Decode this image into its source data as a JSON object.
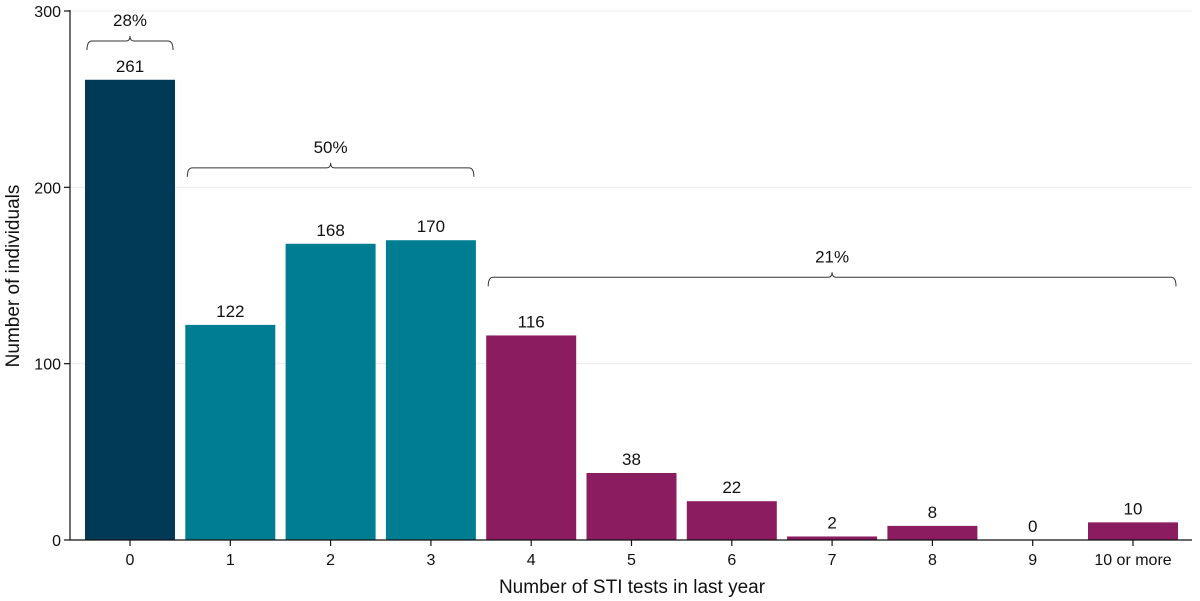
{
  "chart_data": {
    "type": "bar",
    "categories": [
      "0",
      "1",
      "2",
      "3",
      "4",
      "5",
      "6",
      "7",
      "8",
      "9",
      "10 or more"
    ],
    "values": [
      261,
      122,
      168,
      170,
      116,
      38,
      22,
      2,
      8,
      0,
      10
    ],
    "value_labels": [
      "261",
      "122",
      "168",
      "170",
      "116",
      "38",
      "22",
      "2",
      "8",
      "0",
      "10"
    ],
    "bar_colors": [
      "#003a57",
      "#007d91",
      "#007d91",
      "#007d91",
      "#8b1c5f",
      "#8b1c5f",
      "#8b1c5f",
      "#8b1c5f",
      "#8b1c5f",
      "#8b1c5f",
      "#8b1c5f"
    ],
    "xlabel": "Number of STI tests in last year",
    "ylabel": "Number of individuals",
    "ylim": [
      0,
      300
    ],
    "yticks": [
      0,
      100,
      200,
      300
    ],
    "ytick_labels": [
      "0",
      "100",
      "200",
      "300"
    ],
    "grid": "horizontal",
    "brackets": [
      {
        "label": "28%",
        "from_index": 0,
        "to_index": 0,
        "y": 283
      },
      {
        "label": "50%",
        "from_index": 1,
        "to_index": 3,
        "y": 211
      },
      {
        "label": "21%",
        "from_index": 4,
        "to_index": 10,
        "y": 149
      }
    ]
  }
}
